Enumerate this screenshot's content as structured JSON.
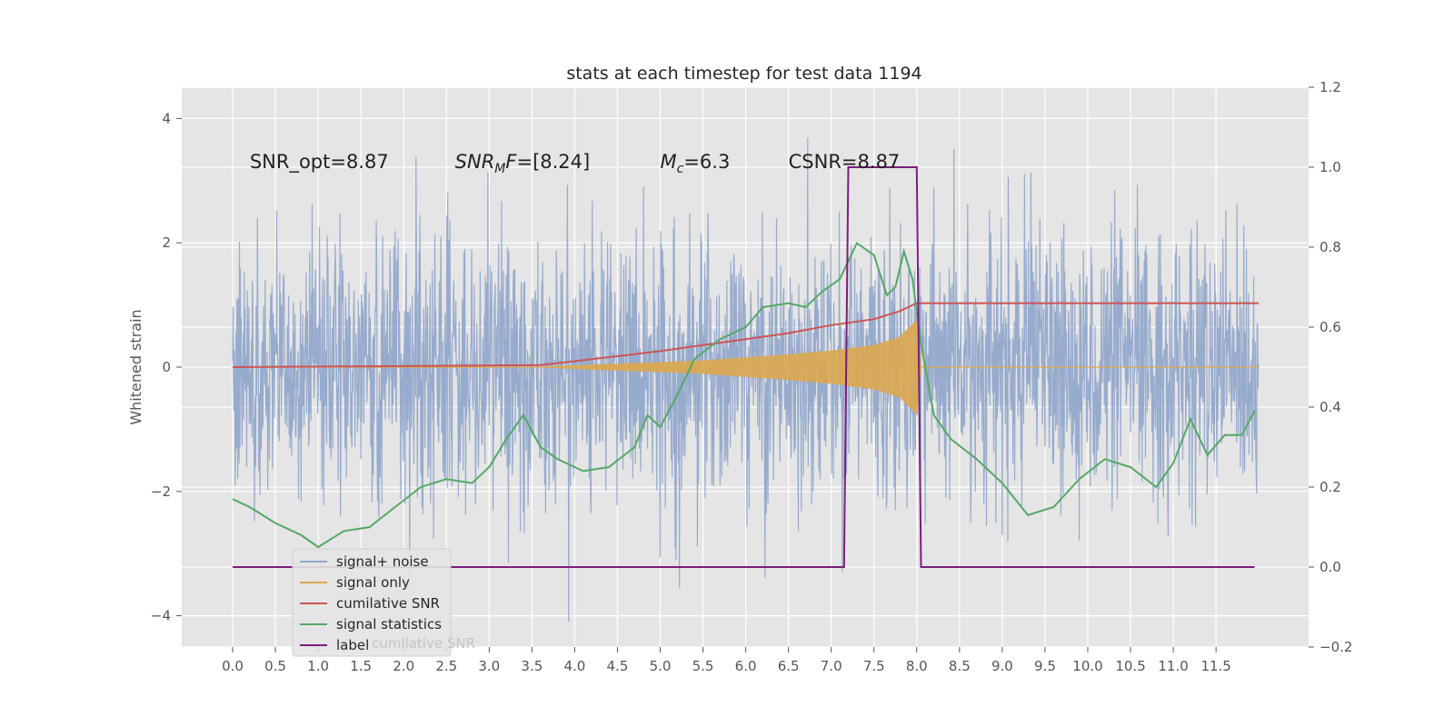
{
  "chart_data": {
    "type": "line",
    "title": "stats at each timestep for test data 1194",
    "ylabel": "Whitened strain",
    "xlabel": "",
    "xlim": [
      -0.58,
      12.45
    ],
    "ylim": [
      -4.5,
      4.5
    ],
    "y2lim": [
      -0.2,
      1.2
    ],
    "xticks": [
      "0.0",
      "0.5",
      "1.0",
      "1.5",
      "2.0",
      "2.5",
      "3.0",
      "3.5",
      "4.0",
      "4.5",
      "5.0",
      "5.5",
      "6.0",
      "6.5",
      "7.0",
      "7.5",
      "8.0",
      "8.5",
      "9.0",
      "9.5",
      "10.0",
      "10.5",
      "11.0",
      "11.5"
    ],
    "yticks": [
      "4",
      "2",
      "0",
      "−2",
      "−4"
    ],
    "y2ticks": [
      "1.2",
      "1.0",
      "0.8",
      "0.6",
      "0.4",
      "0.2",
      "0.0",
      "−0.2"
    ],
    "grid": true,
    "legend_placement": "lower-left",
    "annotations": [
      {
        "pre": "SNR_opt=8.87",
        "x": 0.2,
        "y": 3.2
      },
      {
        "it": "SNR",
        "sub": "M",
        "it2": "F",
        "post": "=[8.24]",
        "x": 2.6,
        "y": 3.2
      },
      {
        "it": "M",
        "sub": "c",
        "post": "=6.3",
        "x": 5.0,
        "y": 3.2
      },
      {
        "pre": "CSNR=8.87",
        "x": 6.5,
        "y": 3.2
      }
    ],
    "noise_band": {
      "x_start": 0.0,
      "x_end": 12.0,
      "typical_amplitude": 1.9,
      "max": 4.1,
      "min": -4.1
    },
    "series": [
      {
        "name": "signal+ noise",
        "color": "#92a8cb",
        "axis": "left",
        "envelope": {
          "x": [
            0.0,
            12.0
          ],
          "upper": 2.9,
          "lower": -3.0
        }
      },
      {
        "name": "signal only",
        "color": "#dca84f",
        "axis": "left",
        "envelope": {
          "x": [
            3.6,
            4.5,
            5.5,
            6.5,
            7.0,
            7.5,
            7.8,
            8.0,
            8.05,
            12.0
          ],
          "amp": [
            0.0,
            0.05,
            0.1,
            0.2,
            0.26,
            0.35,
            0.48,
            0.75,
            0.0,
            0.0
          ]
        }
      },
      {
        "name": "cumilative SNR",
        "color": "#cc5555",
        "axis": "right",
        "x": [
          0.0,
          3.6,
          4.0,
          5.0,
          6.0,
          6.5,
          7.0,
          7.5,
          7.8,
          8.0,
          8.01,
          12.0
        ],
        "y": [
          0.5,
          0.505,
          0.515,
          0.54,
          0.57,
          0.585,
          0.605,
          0.62,
          0.64,
          0.66,
          0.66,
          0.66
        ]
      },
      {
        "name": "signal statistics",
        "color": "#55a868",
        "axis": "right",
        "x": [
          0.0,
          0.2,
          0.5,
          0.8,
          1.0,
          1.3,
          1.6,
          1.9,
          2.2,
          2.5,
          2.8,
          3.0,
          3.2,
          3.4,
          3.6,
          3.8,
          4.1,
          4.4,
          4.7,
          4.85,
          5.0,
          5.2,
          5.4,
          5.7,
          6.0,
          6.2,
          6.5,
          6.7,
          6.9,
          7.1,
          7.3,
          7.5,
          7.65,
          7.75,
          7.85,
          7.95,
          8.05,
          8.2,
          8.4,
          8.7,
          9.0,
          9.3,
          9.6,
          9.9,
          10.2,
          10.5,
          10.8,
          11.0,
          11.2,
          11.4,
          11.6,
          11.8,
          11.95
        ],
        "y": [
          0.17,
          0.15,
          0.11,
          0.08,
          0.05,
          0.09,
          0.1,
          0.15,
          0.2,
          0.22,
          0.21,
          0.25,
          0.32,
          0.38,
          0.3,
          0.27,
          0.24,
          0.25,
          0.3,
          0.38,
          0.35,
          0.43,
          0.52,
          0.57,
          0.6,
          0.65,
          0.66,
          0.65,
          0.69,
          0.72,
          0.81,
          0.78,
          0.68,
          0.7,
          0.79,
          0.72,
          0.56,
          0.38,
          0.32,
          0.27,
          0.21,
          0.13,
          0.15,
          0.22,
          0.27,
          0.25,
          0.2,
          0.26,
          0.37,
          0.28,
          0.33,
          0.33,
          0.39
        ]
      },
      {
        "name": "label",
        "color": "#7b1d7c",
        "axis": "right",
        "x": [
          0.0,
          7.15,
          7.2,
          8.0,
          8.05,
          11.95
        ],
        "y": [
          0.0,
          0.0,
          1.0,
          1.0,
          0.0,
          0.0
        ]
      }
    ],
    "legend_entries": [
      "signal+ noise",
      "signal only",
      "cumilative SNR",
      "signal statistics",
      "label"
    ],
    "legend_ghost_text": "cumilative SNR"
  }
}
